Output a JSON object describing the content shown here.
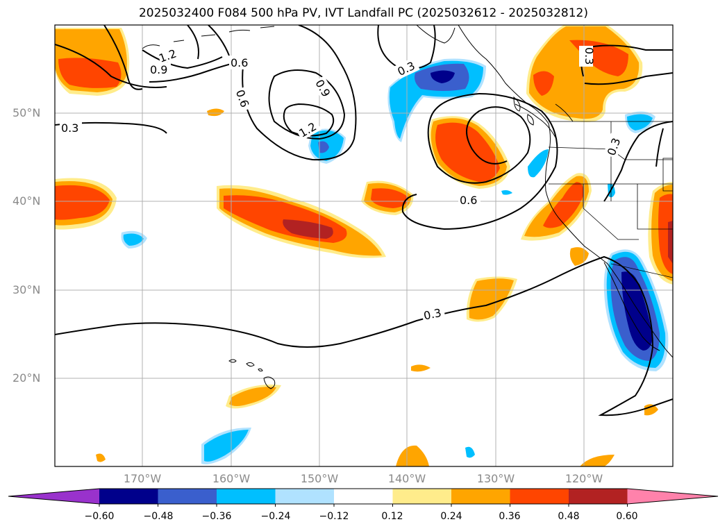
{
  "title": "2025032400 F084 500 hPa PV, IVT Landfall PC (2025032612 - 2025032812)",
  "lat_labels": [
    "50°N",
    "40°N",
    "30°N",
    "20°N"
  ],
  "lon_labels": [
    "170°W",
    "160°W",
    "150°W",
    "140°W",
    "130°W",
    "120°W"
  ],
  "contour_labels": [
    "1.2",
    "0.9",
    "0.6",
    "0.6",
    "0.9",
    "1.2",
    "0.3",
    "0.3",
    "0.6",
    "0.3",
    "0.3",
    "0.3"
  ],
  "colorbar": {
    "ticks": [
      "−0.60",
      "−0.48",
      "−0.36",
      "−0.24",
      "−0.12",
      "0.12",
      "0.24",
      "0.36",
      "0.48",
      "0.60"
    ],
    "colors": [
      "#9932cc",
      "#00008b",
      "#3a5fcd",
      "#00bfff",
      "#b0e2ff",
      "#ffffff",
      "#ffec8b",
      "#ffa500",
      "#ff4500",
      "#b22222",
      "#ff82ab"
    ]
  },
  "fill_colors": {
    "light_yellow": "#ffec8b",
    "orange": "#ffa500",
    "orange_red": "#ff4500",
    "dark_red": "#b22222",
    "light_blue": "#b0e2ff",
    "deep_sky_blue": "#00bfff",
    "royal_blue": "#3a5fcd",
    "navy": "#00008b"
  }
}
